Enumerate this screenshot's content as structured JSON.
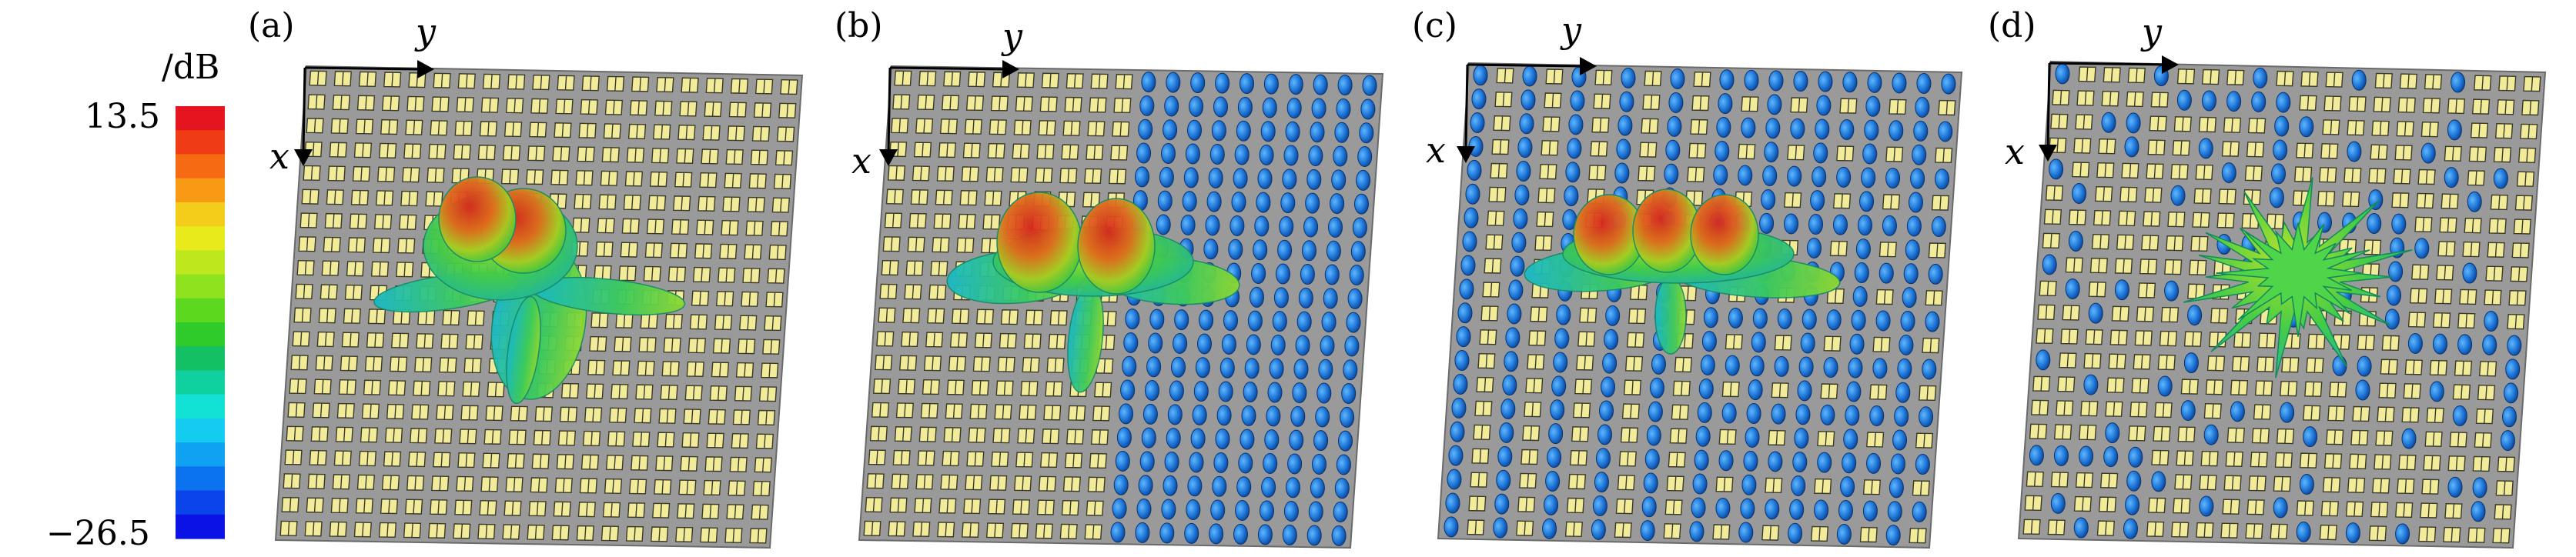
{
  "colorbar": {
    "unit": "/dB",
    "max_label": "13.5",
    "min_label": "−26.5",
    "colors": [
      "#e6141e",
      "#f03c14",
      "#f56a12",
      "#f99a14",
      "#f4cc1a",
      "#e8ea1c",
      "#bde81e",
      "#8fe21e",
      "#5cd81e",
      "#2ecb2a",
      "#14c064",
      "#0fd1a0",
      "#12e2d6",
      "#14cbf0",
      "#0fa2f2",
      "#0b72f0",
      "#0a44ea",
      "#0b12e6"
    ]
  },
  "panels": [
    {
      "label": "(a)",
      "x_axis": "x",
      "y_axis": "y"
    },
    {
      "label": "(b)",
      "x_axis": "x",
      "y_axis": "y"
    },
    {
      "label": "(c)",
      "x_axis": "x",
      "y_axis": "y"
    },
    {
      "label": "(d)",
      "x_axis": "x",
      "y_axis": "y"
    }
  ],
  "colors": {
    "board": "#9a9a9a",
    "cell": "#f2ec9a",
    "cell_stroke": "#3a3a2a",
    "blue_element": "#1c73d4"
  }
}
